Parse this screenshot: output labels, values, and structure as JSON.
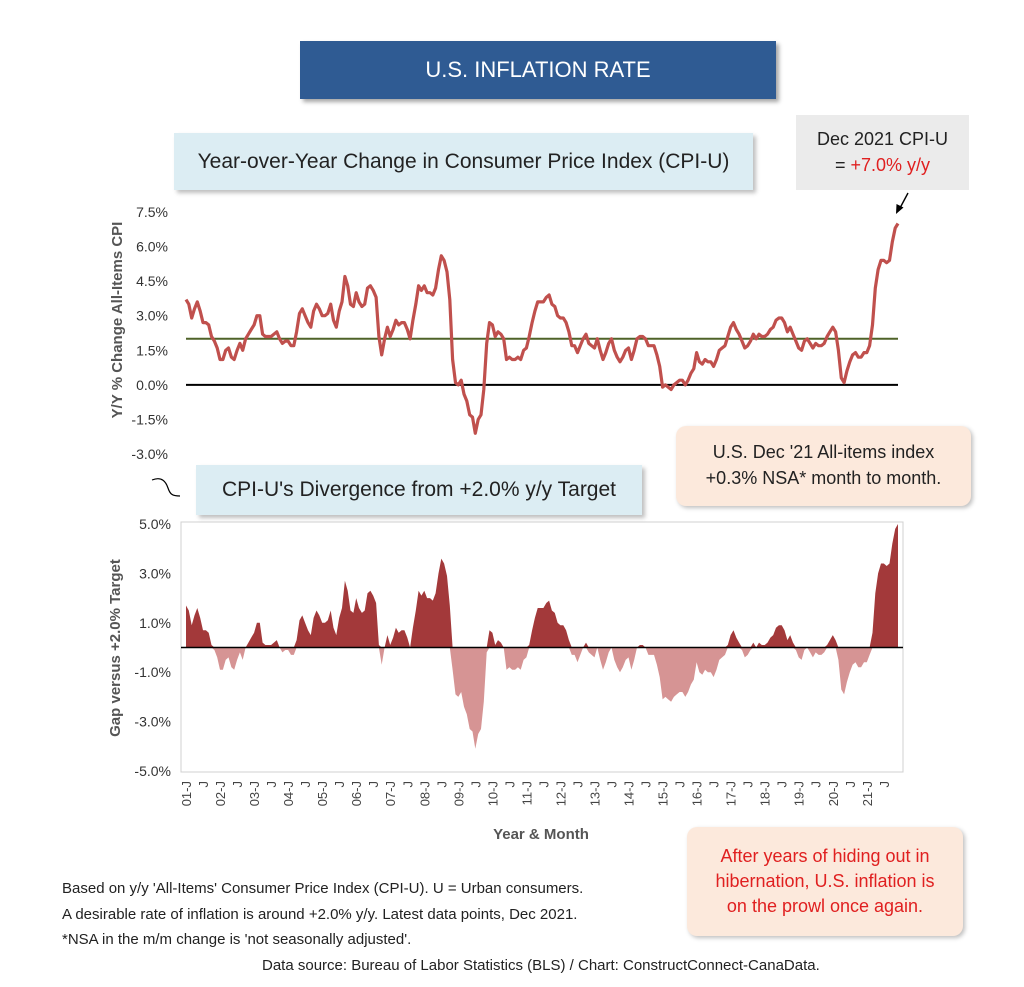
{
  "title": "U.S. INFLATION RATE",
  "panel1_title": "Year-over-Year Change in Consumer Price Index (CPI-U)",
  "panel2_title": "CPI-U's Divergence from +2.0% y/y Target",
  "callout": {
    "line1": "Dec 2021 CPI-U",
    "prefix": "= ",
    "value": "+7.0% y/y"
  },
  "note_mm": {
    "line1": "U.S. Dec '21 All-items index",
    "line2": "+0.3% NSA* month to month."
  },
  "note_prowl": {
    "line1": "After years of hiding out in",
    "line2": "hibernation, U.S. inflation is",
    "line3": "on the prowl once again."
  },
  "footnotes": [
    "Based on y/y 'All-Items' Consumer Price Index (CPI-U). U = Urban consumers.",
    "A desirable rate of inflation is around +2.0% y/y. Latest data points, Dec 2021.",
    "*NSA in the m/m change is 'not seasonally adjusted'."
  ],
  "source": "Data source: Bureau of Labor Statistics (BLS) / Chart: ConstructConnect-CanaData.",
  "colors": {
    "banner": "#2f5b93",
    "line": "#c0504d",
    "target": "#4f6228",
    "pos_area": "#a3393a",
    "neg_area": "#d69494",
    "accent_red": "#e02020"
  },
  "chart_data": [
    {
      "type": "line",
      "title": "Year-over-Year Change in Consumer Price Index (CPI-U)",
      "ylabel": "Y/Y % Change All-Items CPI",
      "xlabel": "Year & Month",
      "ylim": [
        -3.0,
        7.5
      ],
      "yticks": [
        "7.5%",
        "6.0%",
        "4.5%",
        "3.0%",
        "1.5%",
        "0.0%",
        "-1.5%",
        "-3.0%"
      ],
      "target_line": 2.0,
      "x_tick_labels": [
        "01-J",
        "J",
        "02-J",
        "J",
        "03-J",
        "J",
        "04-J",
        "J",
        "05-J",
        "J",
        "06-J",
        "J",
        "07-J",
        "J",
        "08-J",
        "J",
        "09-J",
        "J",
        "10-J",
        "J",
        "11-J",
        "J",
        "12-J",
        "J",
        "13-J",
        "J",
        "14-J",
        "J",
        "15-J",
        "J",
        "16-J",
        "J",
        "17-J",
        "J",
        "18-J",
        "J",
        "19-J",
        "J",
        "20-J",
        "J",
        "21-J",
        "J"
      ],
      "series": [
        {
          "name": "CPI-U y/y % change (Jan 2001 - Dec 2021, monthly)",
          "values": [
            3.7,
            3.5,
            2.9,
            3.3,
            3.6,
            3.2,
            2.7,
            2.7,
            2.6,
            2.1,
            1.9,
            1.6,
            1.1,
            1.1,
            1.5,
            1.6,
            1.2,
            1.1,
            1.5,
            1.8,
            1.5,
            2.0,
            2.2,
            2.4,
            2.6,
            3.0,
            3.0,
            2.2,
            2.1,
            2.1,
            2.1,
            2.2,
            2.3,
            2.0,
            1.8,
            1.9,
            1.9,
            1.7,
            1.7,
            2.3,
            3.1,
            3.3,
            3.0,
            2.7,
            2.5,
            3.2,
            3.5,
            3.3,
            3.0,
            3.0,
            3.1,
            3.5,
            2.8,
            2.5,
            3.2,
            3.6,
            4.7,
            4.3,
            3.5,
            3.4,
            4.0,
            3.6,
            3.4,
            3.5,
            4.2,
            4.3,
            4.1,
            3.8,
            2.1,
            1.3,
            2.0,
            2.5,
            2.1,
            2.4,
            2.8,
            2.6,
            2.7,
            2.7,
            2.4,
            2.0,
            2.8,
            3.5,
            4.3,
            4.1,
            4.3,
            4.0,
            4.0,
            3.9,
            4.2,
            5.0,
            5.6,
            5.4,
            4.9,
            3.7,
            1.1,
            0.1,
            0.0,
            0.2,
            -0.4,
            -0.7,
            -1.3,
            -1.4,
            -2.1,
            -1.5,
            -1.3,
            -0.2,
            1.8,
            2.7,
            2.6,
            2.1,
            2.3,
            2.2,
            2.0,
            1.1,
            1.2,
            1.1,
            1.1,
            1.2,
            1.1,
            1.5,
            1.6,
            2.1,
            2.7,
            3.2,
            3.6,
            3.6,
            3.6,
            3.8,
            3.9,
            3.5,
            3.4,
            3.0,
            2.9,
            2.9,
            2.7,
            2.3,
            1.7,
            1.7,
            1.4,
            1.7,
            2.0,
            2.2,
            1.8,
            1.7,
            1.6,
            2.0,
            1.5,
            1.1,
            1.4,
            1.8,
            2.0,
            1.5,
            1.2,
            1.0,
            1.2,
            1.5,
            1.6,
            1.1,
            1.5,
            2.0,
            2.1,
            2.1,
            2.0,
            1.7,
            1.7,
            1.7,
            1.3,
            0.8,
            -0.1,
            0.0,
            -0.1,
            -0.2,
            0.0,
            0.1,
            0.2,
            0.2,
            0.0,
            0.2,
            0.5,
            0.7,
            1.4,
            1.0,
            0.9,
            1.1,
            1.0,
            1.0,
            0.8,
            1.1,
            1.5,
            1.6,
            1.7,
            2.1,
            2.5,
            2.7,
            2.4,
            2.2,
            1.9,
            1.6,
            1.7,
            1.9,
            2.2,
            2.0,
            2.2,
            2.1,
            2.1,
            2.2,
            2.4,
            2.5,
            2.8,
            2.9,
            2.9,
            2.7,
            2.3,
            2.5,
            2.2,
            1.9,
            1.6,
            1.5,
            1.9,
            2.0,
            1.8,
            1.6,
            1.8,
            1.7,
            1.7,
            1.8,
            2.1,
            2.3,
            2.5,
            2.3,
            1.5,
            0.3,
            0.1,
            0.6,
            1.0,
            1.3,
            1.4,
            1.2,
            1.2,
            1.4,
            1.4,
            1.7,
            2.6,
            4.2,
            5.0,
            5.4,
            5.4,
            5.3,
            5.4,
            6.2,
            6.8,
            7.0
          ]
        }
      ]
    },
    {
      "type": "area",
      "title": "CPI-U's Divergence from +2.0% y/y Target",
      "ylabel": "Gap versus +2.0% Target",
      "xlabel": "Year & Month",
      "ylim": [
        -5.0,
        5.0
      ],
      "yticks": [
        "5.0%",
        "3.0%",
        "1.0%",
        "-1.0%",
        "-3.0%",
        "-5.0%"
      ],
      "derived_from": "CPI-U y/y % change minus 2.0"
    }
  ]
}
